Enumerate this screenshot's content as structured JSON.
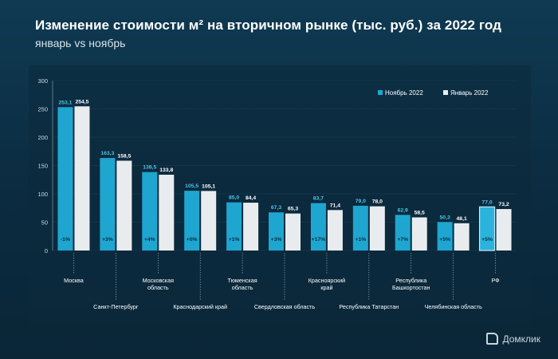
{
  "title": "Изменение стоимости м² на вторичном рынке (тыс. руб.) за 2022 год",
  "subtitle": "январь vs ноябрь",
  "brand": "Домклик",
  "colors": {
    "nov": "#1ea6d0",
    "jan": "#e9ecef",
    "rf_nov": "#2bb3de",
    "axis_text": "#cfdbe3",
    "value_nov": "#4fc3e6",
    "value_jan": "#ffffff",
    "grid": "#2a5570"
  },
  "chart_data": {
    "type": "bar",
    "ylim": [
      0,
      300
    ],
    "yticks": [
      "0",
      "50",
      "100",
      "150",
      "200",
      "250",
      "300"
    ],
    "legend": "top-right",
    "grid": true,
    "categories": [
      "Москва",
      "Санкт-Петербург",
      "Московская область",
      "Краснодарский край",
      "Тюменская область",
      "Свердловская область",
      "Красноярский край",
      "Республика Татарстан",
      "Республика Башкортостан",
      "Челябинская область",
      "РФ"
    ],
    "category_labels": [
      [
        "Москва"
      ],
      [
        "Санкт-Петербург"
      ],
      [
        "Московская",
        "область"
      ],
      [
        "Краснодарский край"
      ],
      [
        "Тюменская",
        "область"
      ],
      [
        "Свердловская область"
      ],
      [
        "Красноярский",
        "край"
      ],
      [
        "Республика Татарстан"
      ],
      [
        "Республика",
        "Башкортостан"
      ],
      [
        "Челябинская область"
      ],
      [
        "РФ"
      ]
    ],
    "series": [
      {
        "name": "Ноябрь 2022",
        "values": [
          253.1,
          163.3,
          138.5,
          105.5,
          85.0,
          67.3,
          83.7,
          79.0,
          62.9,
          50.3,
          77.0
        ],
        "labels": [
          "253,1",
          "163,3",
          "138,5",
          "105,5",
          "85,0",
          "67,3",
          "83,7",
          "79,0",
          "62,9",
          "50,3",
          "77,0"
        ]
      },
      {
        "name": "Январь 2022",
        "values": [
          254.5,
          158.5,
          133.8,
          105.1,
          84.4,
          65.3,
          71.4,
          78.0,
          58.5,
          48.1,
          73.2
        ],
        "labels": [
          "254,5",
          "158,5",
          "133,8",
          "105,1",
          "84,4",
          "65,3",
          "71,4",
          "78,0",
          "58,5",
          "48,1",
          "73,2"
        ]
      }
    ],
    "changes": [
      "-1%",
      "+3%",
      "+4%",
      "+0%",
      "+1%",
      "+3%",
      "+17%",
      "+1%",
      "+7%",
      "+5%",
      "+5%"
    ]
  }
}
